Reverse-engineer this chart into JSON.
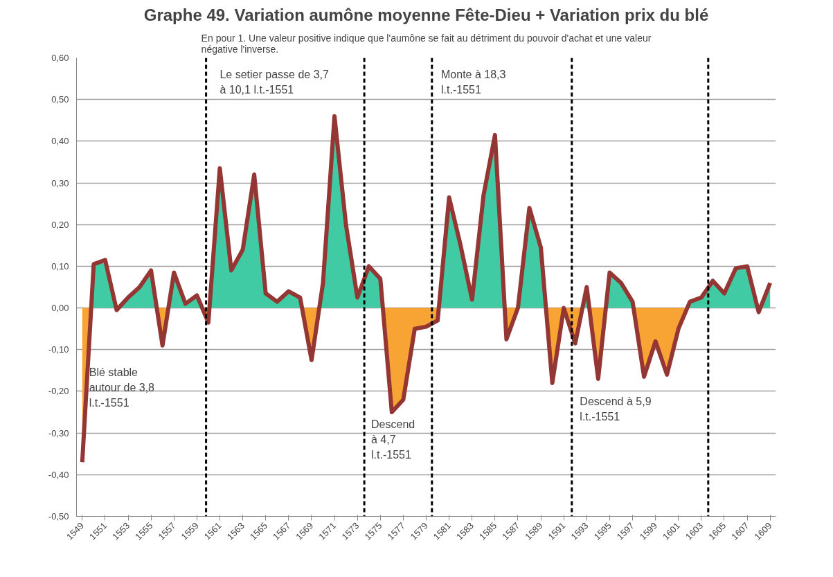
{
  "chart_data": {
    "type": "area",
    "title": "Graphe 49. Variation aumône moyenne Fête-Dieu + Variation prix du blé",
    "subtitle": "En pour 1. Une valeur positive indique que l'aumône se fait au détriment du pouvoir d'achat et une valeur\nnégative l'inverse.",
    "x": [
      1549,
      1550,
      1551,
      1552,
      1553,
      1554,
      1555,
      1556,
      1557,
      1558,
      1559,
      1560,
      1561,
      1562,
      1563,
      1564,
      1565,
      1566,
      1567,
      1568,
      1569,
      1570,
      1571,
      1572,
      1573,
      1574,
      1575,
      1576,
      1577,
      1578,
      1579,
      1580,
      1581,
      1582,
      1583,
      1584,
      1585,
      1586,
      1587,
      1588,
      1589,
      1590,
      1591,
      1592,
      1593,
      1594,
      1595,
      1596,
      1597,
      1598,
      1599,
      1600,
      1601,
      1602,
      1603,
      1604,
      1605,
      1606,
      1607,
      1608,
      1609
    ],
    "series": [
      {
        "color": "#40cba5",
        "values": [
          0,
          0.105,
          0.115,
          0,
          0.025,
          0.05,
          0.09,
          0,
          0.085,
          0.01,
          0.03,
          0,
          0.335,
          0.09,
          0.14,
          0.32,
          0.035,
          0.015,
          0.04,
          0.025,
          0,
          0.06,
          0.46,
          0.2,
          0.025,
          0.1,
          0.07,
          0,
          0,
          0,
          0,
          0,
          0.265,
          0.15,
          0.02,
          0.27,
          0.415,
          0,
          0,
          0.24,
          0.145,
          0,
          0,
          0,
          0.05,
          0,
          0.085,
          0.06,
          0.015,
          0,
          0,
          0,
          0,
          0.015,
          0.025,
          0.065,
          0.035,
          0.095,
          0.1,
          0,
          0.06
        ]
      },
      {
        "color": "#f8a435",
        "values": [
          -0.37,
          0,
          0,
          -0.005,
          0,
          0,
          0,
          -0.09,
          0,
          0,
          0,
          -0.035,
          0,
          0,
          0,
          0,
          0,
          0,
          0,
          0,
          -0.125,
          0,
          0,
          0,
          0,
          0,
          0,
          -0.25,
          -0.22,
          -0.05,
          -0.045,
          -0.03,
          0,
          0,
          0,
          0,
          0,
          -0.075,
          0,
          0,
          0,
          -0.18,
          0,
          -0.085,
          0,
          -0.17,
          0,
          0,
          0,
          -0.165,
          -0.08,
          -0.16,
          -0.05,
          0,
          0,
          0,
          0,
          0,
          0,
          -0.01,
          0
        ]
      },
      {
        "type": "line",
        "color": "#943634",
        "values": [
          -0.37,
          0.105,
          0.115,
          -0.005,
          0.025,
          0.05,
          0.09,
          -0.09,
          0.085,
          0.01,
          0.03,
          -0.035,
          0.335,
          0.09,
          0.14,
          0.32,
          0.035,
          0.015,
          0.04,
          0.025,
          -0.125,
          0.06,
          0.46,
          0.2,
          0.025,
          0.1,
          0.07,
          -0.25,
          -0.22,
          -0.05,
          -0.045,
          -0.03,
          0.265,
          0.15,
          0.02,
          0.27,
          0.415,
          -0.075,
          0.0,
          0.24,
          0.145,
          -0.18,
          0.0,
          -0.085,
          0.05,
          -0.17,
          0.085,
          0.06,
          0.015,
          -0.165,
          -0.08,
          -0.16,
          -0.05,
          0.015,
          0.025,
          0.065,
          0.035,
          0.095,
          0.1,
          -0.01,
          0.06
        ]
      }
    ],
    "xlim": [
      1548.5,
      1609.5
    ],
    "xticks": [
      1549,
      1551,
      1553,
      1555,
      1557,
      1559,
      1561,
      1563,
      1565,
      1567,
      1569,
      1571,
      1573,
      1575,
      1577,
      1579,
      1581,
      1583,
      1585,
      1587,
      1589,
      1591,
      1593,
      1595,
      1597,
      1599,
      1601,
      1603,
      1605,
      1607,
      1609
    ],
    "ylim": [
      -0.5,
      0.6
    ],
    "yticks": [
      {
        "value": -0.5,
        "label": "-0,50"
      },
      {
        "value": -0.4,
        "label": "-0,40"
      },
      {
        "value": -0.3,
        "label": "-0,30"
      },
      {
        "value": -0.2,
        "label": "-0,20"
      },
      {
        "value": -0.1,
        "label": "-0,10"
      },
      {
        "value": 0,
        "label": "0,00"
      },
      {
        "value": 0.1,
        "label": "0,10"
      },
      {
        "value": 0.2,
        "label": "0,20"
      },
      {
        "value": 0.3,
        "label": "0,30"
      },
      {
        "value": 0.4,
        "label": "0,40"
      },
      {
        "value": 0.5,
        "label": "0,50"
      },
      {
        "value": 0.6,
        "label": "0,60"
      }
    ],
    "grid": "y",
    "line_style": "solid",
    "marker": "none",
    "ref_lines": [
      {
        "axis": "x",
        "value": 1559.8,
        "color": "#000000",
        "line_style": "dashed"
      },
      {
        "axis": "x",
        "value": 1573.6,
        "color": "#000000",
        "line_style": "dashed"
      },
      {
        "axis": "x",
        "value": 1579.5,
        "color": "#000000",
        "line_style": "dashed"
      },
      {
        "axis": "x",
        "value": 1591.7,
        "color": "#000000",
        "line_style": "dashed"
      },
      {
        "axis": "x",
        "value": 1603.6,
        "color": "#000000",
        "line_style": "dashed"
      }
    ],
    "annotations": [
      "Blé stable\nautour de 3,8\nl.t.-1551",
      "Le setier passe de 3,7\nà 10,1 l.t.-1551",
      "Descend\nà 4,7\nl.t.-1551",
      "Monte à 18,3\nl.t.-1551",
      "Descend à 5,9\nl.t.-1551"
    ]
  }
}
